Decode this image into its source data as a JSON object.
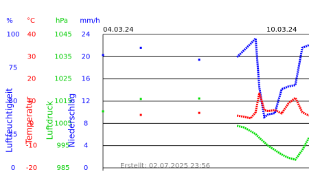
{
  "chart_data": {
    "type": "line",
    "footer": "Erstellt: 02.07.2025 23:56",
    "x": [
      0,
      15,
      30.5,
      50,
      77.5,
      95,
      108,
      113.5,
      119,
      123,
      126,
      130,
      133,
      138.5,
      144,
      149.5,
      155,
      160.6,
      166
    ],
    "xlim": [
      0,
      166
    ],
    "xticks": [
      {
        "value": 0,
        "label": "04.03.24"
      },
      {
        "value": 144,
        "label": "10.03.24"
      }
    ],
    "grid": true,
    "axes": [
      {
        "unit": "%",
        "title": "Luftfeuchtigkeit",
        "color": "#0000ff",
        "ylim": [
          0,
          100
        ],
        "yticks": [
          0,
          25,
          50,
          75,
          100
        ]
      },
      {
        "unit": "°C",
        "title": "Temperatur",
        "color": "#ff0000",
        "ylim": [
          -20,
          40
        ],
        "yticks": [
          -20,
          -10,
          0,
          10,
          20,
          30,
          40
        ]
      },
      {
        "unit": "hPa",
        "title": "Luftdruck",
        "color": "#00cc00",
        "ylim": [
          985,
          1045
        ],
        "yticks": [
          985,
          995,
          1005,
          1015,
          1025,
          1035,
          1045
        ]
      },
      {
        "unit": "mm/h",
        "title": "Niederschlag",
        "color": "#0000ff",
        "ylim": [
          0,
          24
        ],
        "yticks": [
          0,
          4,
          8,
          12,
          16,
          20,
          24
        ]
      }
    ],
    "series": [
      {
        "name": "Luftfeuchtigkeit",
        "axis": 0,
        "color": "#0000ff",
        "values": [
          84.5,
          null,
          90,
          null,
          81,
          null,
          83,
          88,
          93,
          97,
          60,
          38,
          40,
          41,
          59,
          61,
          62,
          90,
          92
        ]
      },
      {
        "name": "Temperatur",
        "axis": 1,
        "color": "#ff0000",
        "values": [
          null,
          null,
          3.8,
          null,
          4.7,
          null,
          3.5,
          3,
          2.3,
          5,
          13.7,
          6,
          5.5,
          6,
          4.5,
          9,
          11.5,
          5,
          3.5
        ]
      },
      {
        "name": "Luftdruck",
        "axis": 2,
        "color": "#00dd00",
        "values": [
          1010.4,
          null,
          1016,
          null,
          1016.2,
          null,
          1003.9,
          1003.2,
          1001.5,
          1000.2,
          998.5,
          996.5,
          995,
          993,
          991,
          989.5,
          988.7,
          993,
          998.6
        ]
      }
    ]
  }
}
